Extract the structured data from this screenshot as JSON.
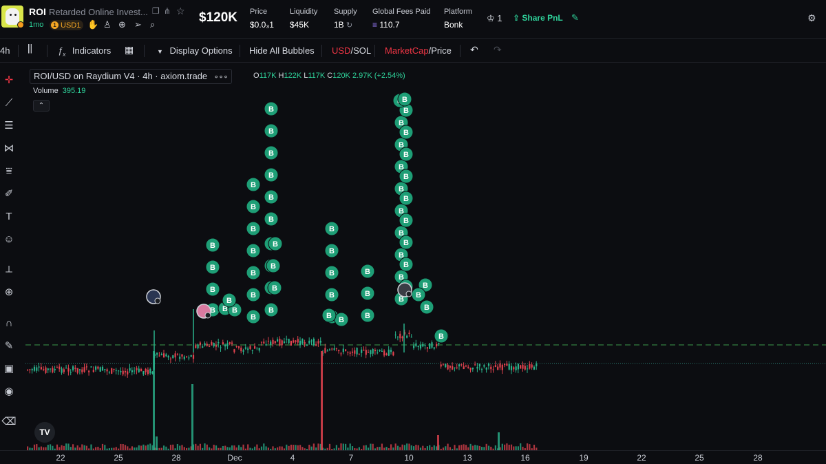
{
  "token": {
    "symbol": "ROI",
    "name": "Retarded Online Invest...",
    "age": "1mo",
    "badge": "USD1",
    "badge_coin": "1"
  },
  "header": {
    "market_cap": "$120K",
    "stats": [
      {
        "label": "Price",
        "value": "$0.0₃1"
      },
      {
        "label": "Liquidity",
        "value": "$45K"
      },
      {
        "label": "Supply",
        "value": "1B"
      },
      {
        "label": "Global Fees Paid",
        "value": "110.7"
      },
      {
        "label": "Platform",
        "value": "Bonk"
      }
    ],
    "watch_count": "1",
    "share_label": "Share PnL"
  },
  "toolbar": {
    "interval": "4h",
    "indicators": "Indicators",
    "display_options": "Display Options",
    "hide_bubbles": "Hide All Bubbles",
    "currency_a": "USD",
    "currency_b": "SOL",
    "mode_a": "MarketCap",
    "mode_b": "Price"
  },
  "chart": {
    "title": "ROI/USD on Raydium V4 · 4h · axiom.trade",
    "ohlc": {
      "o": "117K",
      "h": "122K",
      "l": "117K",
      "c": "120K",
      "chg": "2.97K (+2.54%)"
    },
    "volume_label": "Volume",
    "volume_value": "395.19",
    "bubble_letter": "B",
    "tv_logo": "TV"
  },
  "time_axis": [
    "22",
    "25",
    "28",
    "Dec",
    "4",
    "7",
    "10",
    "13",
    "16",
    "19",
    "22",
    "25",
    "28"
  ],
  "colors": {
    "up": "#2ab38c",
    "down": "#e2434f",
    "accent": "#2fd39b",
    "bubble": "#1e9e76"
  },
  "icons": [
    "copy-icon",
    "share-icon",
    "star-icon",
    "chef-icon",
    "user-icon",
    "globe-icon",
    "telegram-icon",
    "search-icon",
    "crown-icon",
    "upload-icon",
    "pin-icon",
    "gear-icon"
  ]
}
